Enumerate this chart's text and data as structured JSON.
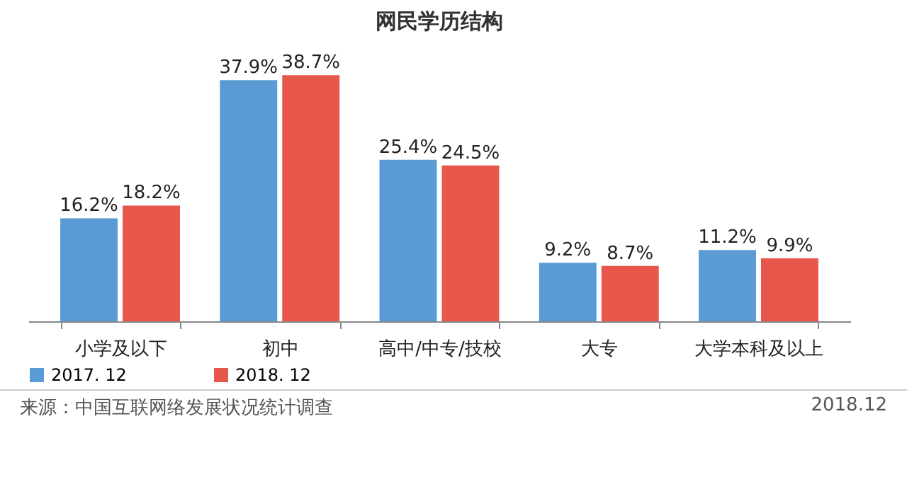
{
  "chart_data": {
    "type": "bar",
    "title": "网民学历结构",
    "categories": [
      "小学及以下",
      "初中",
      "高中/中专/技校",
      "大专",
      "大学本科及以上"
    ],
    "series": [
      {
        "name": "2017. 12",
        "color": "#5b9bd5",
        "values": [
          16.2,
          37.9,
          25.4,
          9.2,
          11.2
        ],
        "value_labels": [
          "16.2%",
          "37.9%",
          "25.4%",
          "9.2%",
          "11.2%"
        ]
      },
      {
        "name": "2018. 12",
        "color": "#e8574b",
        "values": [
          18.2,
          38.7,
          24.5,
          8.7,
          9.9
        ],
        "value_labels": [
          "18.2%",
          "38.7%",
          "24.5%",
          "8.7%",
          "9.9%"
        ]
      }
    ],
    "legend": "bottom",
    "grid": false,
    "annotations": [
      "来源：中国互联网络发展状况统计调查",
      "2018.12"
    ]
  }
}
